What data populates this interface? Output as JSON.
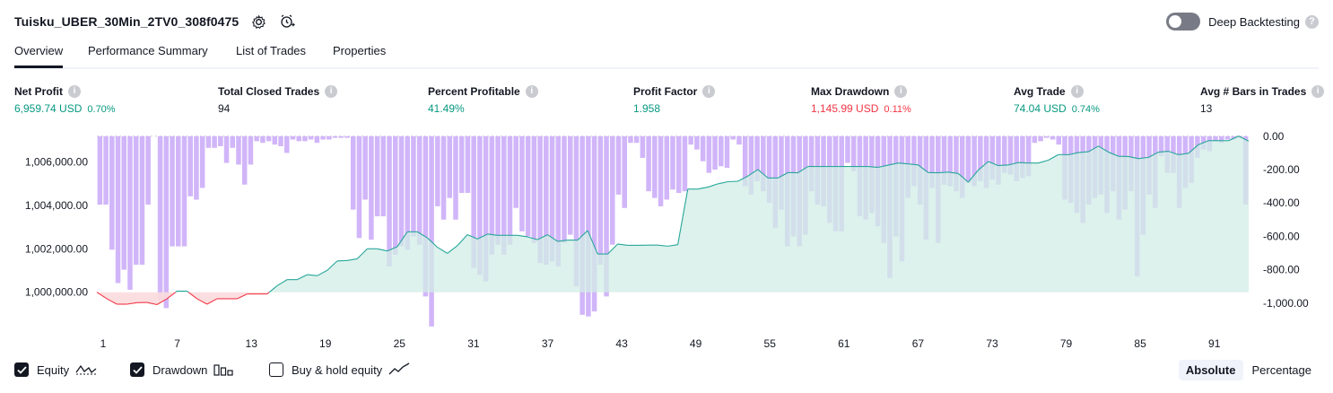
{
  "strategy": {
    "name": "Tuisku_UBER_30Min_2TV0_308f0475"
  },
  "deep_backtesting": {
    "label": "Deep Backtesting",
    "enabled": false
  },
  "tabs": [
    {
      "label": "Overview",
      "active": true
    },
    {
      "label": "Performance Summary",
      "active": false
    },
    {
      "label": "List of Trades",
      "active": false
    },
    {
      "label": "Properties",
      "active": false
    }
  ],
  "metrics": [
    {
      "label": "Net Profit",
      "value": "6,959.74 USD",
      "pct": "0.70%",
      "status": "pos"
    },
    {
      "label": "Total Closed Trades",
      "value": "94",
      "pct": "",
      "status": "neu"
    },
    {
      "label": "Percent Profitable",
      "value": "41.49%",
      "pct": "",
      "status": "pos"
    },
    {
      "label": "Profit Factor",
      "value": "1.958",
      "pct": "",
      "status": "pos"
    },
    {
      "label": "Max Drawdown",
      "value": "1,145.99 USD",
      "pct": "0.11%",
      "status": "neg"
    },
    {
      "label": "Avg Trade",
      "value": "74.04 USD",
      "pct": "0.74%",
      "status": "pos"
    },
    {
      "label": "Avg # Bars in Trades",
      "value": "13",
      "pct": "",
      "status": "neu"
    }
  ],
  "chart_data": {
    "type": "area",
    "x_tick_labels": [
      "1",
      "7",
      "13",
      "19",
      "25",
      "31",
      "37",
      "43",
      "49",
      "55",
      "61",
      "67",
      "73",
      "79",
      "85",
      "91"
    ],
    "left_axis_ticks": [
      "1,006,000.00",
      "1,004,000.00",
      "1,002,000.00",
      "1,000,000.00"
    ],
    "right_axis_ticks": [
      "0.00",
      "-200.00",
      "-400.00",
      "-600.00",
      "-800.00",
      "-1,000.00"
    ],
    "left_ylim": [
      998500,
      1007300
    ],
    "right_ylim": [
      -1130,
      15
    ],
    "baseline_equity": 1000000,
    "series": [
      {
        "name": "Equity",
        "values": [
          1000000,
          999700,
          999450,
          999450,
          999520,
          999530,
          999430,
          999700,
          1000050,
          1000050,
          999700,
          999450,
          999700,
          999700,
          999700,
          999920,
          999920,
          999920,
          1000300,
          1000580,
          1000580,
          1000810,
          1000760,
          1001010,
          1001440,
          1001460,
          1001540,
          1002000,
          1002000,
          1001900,
          1002100,
          1002780,
          1002780,
          1002500,
          1002070,
          1001790,
          1002150,
          1002650,
          1002450,
          1002680,
          1002620,
          1002620,
          1002620,
          1002550,
          1002420,
          1002650,
          1002340,
          1002400,
          1002400,
          1002840,
          1001760,
          1001760,
          1002220,
          1002160,
          1002160,
          1002170,
          1002170,
          1002120,
          1002190,
          1004750,
          1004750,
          1004840,
          1004990,
          1005090,
          1005110,
          1005350,
          1005650,
          1005260,
          1005260,
          1005510,
          1005500,
          1005790,
          1005790,
          1005790,
          1005790,
          1005790,
          1005790,
          1005790,
          1005750,
          1005850,
          1005950,
          1005910,
          1005860,
          1005510,
          1005500,
          1005530,
          1005470,
          1005070,
          1005620,
          1006020,
          1005830,
          1005860,
          1005970,
          1005950,
          1005950,
          1006080,
          1006340,
          1006330,
          1006430,
          1006470,
          1006730,
          1006450,
          1006260,
          1006250,
          1006150,
          1006210,
          1006450,
          1006490,
          1006330,
          1006400,
          1006800,
          1006980,
          1006980,
          1006980,
          1007190,
          1006960
        ]
      },
      {
        "name": "Drawdown",
        "values": [
          -410,
          -410,
          -680,
          -880,
          -800,
          -920,
          -770,
          -770,
          -410,
          0,
          -980,
          -1030,
          -660,
          -660,
          -660,
          -360,
          -380,
          -310,
          -70,
          -70,
          -60,
          -160,
          -70,
          -170,
          -290,
          -170,
          -30,
          -40,
          -30,
          -50,
          -60,
          -100,
          -20,
          -30,
          -30,
          -20,
          -40,
          -20,
          -20,
          -10,
          -10,
          -10,
          -440,
          -610,
          -380,
          -620,
          -480,
          -480,
          -780,
          -710,
          -660,
          -680,
          -600,
          -650,
          -960,
          -1140,
          -420,
          -500,
          -370,
          -500,
          -340,
          -340,
          -790,
          -830,
          -870,
          -710,
          -650,
          -710,
          -650,
          -430,
          -570,
          -600,
          -640,
          -760,
          -770,
          -750,
          -780,
          -640,
          -590,
          -900,
          -1070,
          -1080,
          -1050,
          -770,
          -960,
          -650,
          -350,
          -430,
          -40,
          -40,
          -130,
          -330,
          -370,
          -420,
          -380,
          -320,
          -340,
          -330,
          -50,
          -80,
          -150,
          -220,
          -200,
          -180,
          -190,
          -20,
          -50,
          -300,
          -350,
          -270,
          -330,
          -400,
          -550,
          -440,
          -660,
          -600,
          -660,
          -590,
          -330,
          -410,
          -420,
          -520,
          -570,
          -570,
          -160,
          -210,
          -480,
          -500,
          -460,
          -540,
          -640,
          -850,
          -600,
          -750,
          -370,
          -300,
          -410,
          -620,
          -310,
          -640,
          -290,
          -300,
          -330,
          -370,
          -280,
          -300,
          -270,
          -310,
          -260,
          -290,
          -220,
          -230,
          -270,
          -250,
          -240,
          -40,
          -30,
          -10,
          -20,
          -50,
          -380,
          -400,
          -460,
          -520,
          -410,
          -370,
          -350,
          -460,
          -330,
          -500,
          -440,
          -330,
          -840,
          -590,
          -350,
          -430,
          -120,
          -220,
          -220,
          -430,
          -310,
          -280,
          -130,
          -80,
          -90,
          -30,
          -40,
          -20,
          -20,
          -10,
          -410
        ]
      }
    ],
    "legend": [
      "Equity",
      "Drawdown",
      "Buy & hold equity"
    ],
    "legend_checked": [
      true,
      true,
      false
    ],
    "colors": {
      "equity": "#26a69a",
      "equity_fill": "#d1ede6",
      "loss": "#f23645",
      "loss_fill": "#fbdcdd",
      "drawdown": "#c9a8f8"
    },
    "legend_placement": "bottom-left"
  },
  "legend": {
    "equity_label": "Equity",
    "drawdown_label": "Drawdown",
    "buyhold_label": "Buy & hold equity"
  },
  "modes": [
    {
      "label": "Absolute",
      "active": true
    },
    {
      "label": "Percentage",
      "active": false
    }
  ]
}
